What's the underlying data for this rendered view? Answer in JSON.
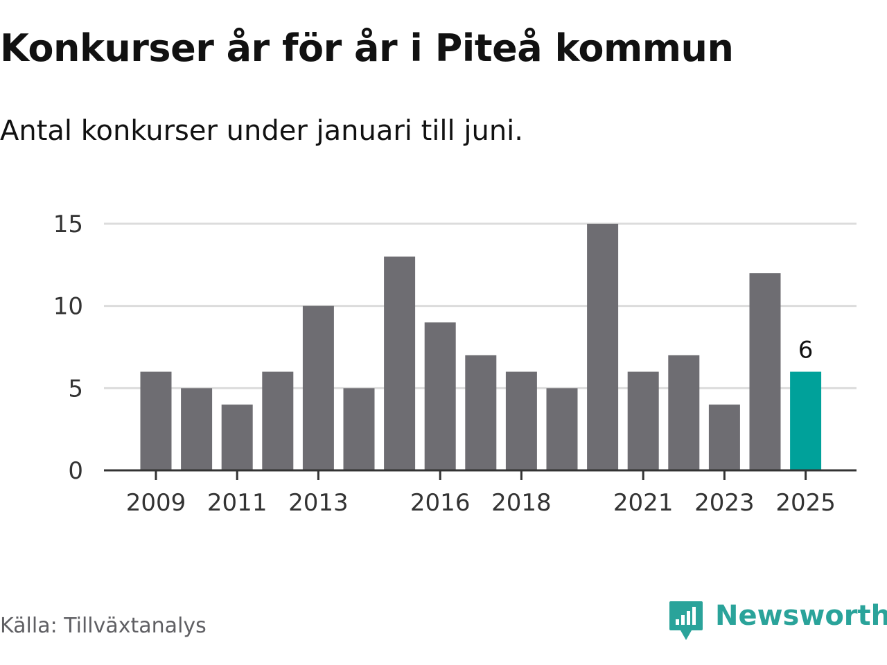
{
  "title": "Konkurser år för år i Piteå kommun",
  "subtitle": "Antal konkurser under januari till juni.",
  "source": "Källa: Tillväxtanalys",
  "brand": {
    "name": "Newsworthy",
    "icon": "newsworthy-logo-icon"
  },
  "colors": {
    "bar": "#6e6d72",
    "highlight": "#00a19a",
    "grid": "#dcdcdc",
    "axis": "#333333",
    "text": "#333333"
  },
  "chart_data": {
    "type": "bar",
    "categories": [
      "2009",
      "2010",
      "2011",
      "2012",
      "2013",
      "2014",
      "2015",
      "2016",
      "2017",
      "2018",
      "2019",
      "2020",
      "2021",
      "2022",
      "2023",
      "2024",
      "2025"
    ],
    "values": [
      6,
      5,
      4,
      6,
      10,
      5,
      13,
      9,
      7,
      6,
      5,
      15,
      6,
      7,
      4,
      12,
      6
    ],
    "x_tick_labels": [
      "2009",
      "2011",
      "2013",
      "2016",
      "2018",
      "2021",
      "2023",
      "2025"
    ],
    "y_ticks": [
      "0",
      "5",
      "10",
      "15"
    ],
    "ylim": [
      0,
      15
    ],
    "highlight_category": "2025",
    "data_labels": [
      {
        "category": "2025",
        "text": "6"
      }
    ],
    "grid": true
  }
}
